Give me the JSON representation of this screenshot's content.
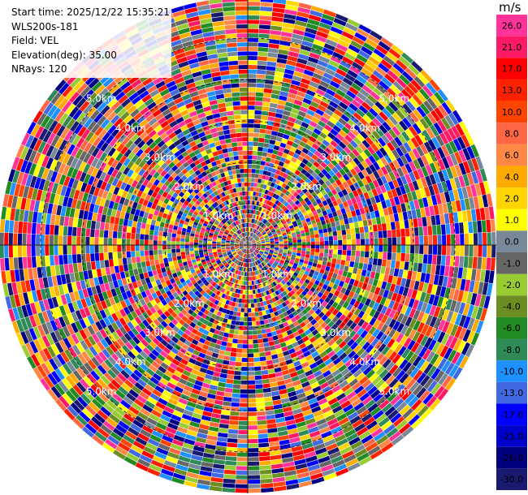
{
  "info": {
    "start_time": "Start time: 2025/12/22 15:35:21",
    "instrument": "WLS200s-181",
    "field": "Field: VEL",
    "elevation": "Elevation(deg): 35.00",
    "nrays": "NRays: 120"
  },
  "colorbar": {
    "unit": "m/s",
    "ticks": [
      "26.0",
      "21.0",
      "17.0",
      "13.0",
      "10.0",
      "8.0",
      "6.0",
      "4.0",
      "2.0",
      "1.0",
      "0.0",
      "-1.0",
      "-2.0",
      "-4.0",
      "-6.0",
      "-8.0",
      "-10.0",
      "-13.0",
      "-17.0",
      "-21.0",
      "-26.0",
      "-30.0"
    ],
    "colors": [
      "#ff3399",
      "#ff1a66",
      "#ff0000",
      "#ff2200",
      "#ff4400",
      "#ff6644",
      "#ff8844",
      "#ffaa00",
      "#ffd400",
      "#ffff00",
      "#778899",
      "#666666",
      "#99cc33",
      "#6b8e23",
      "#228b22",
      "#2e8b57",
      "#1e90ff",
      "#4169e1",
      "#0000ff",
      "#0000cd",
      "#000080",
      "#191970"
    ]
  },
  "chart_data": {
    "type": "ppi",
    "field": "VEL",
    "n_rays": 120,
    "range_rings_km": [
      1.0,
      2.0,
      3.0,
      4.0,
      5.0
    ],
    "ring_labels": [
      "1.0km",
      "2.0km",
      "3.0km",
      "4.0km",
      "5.0km"
    ],
    "data_note_ranges_km": [
      0,
      6
    ]
  }
}
